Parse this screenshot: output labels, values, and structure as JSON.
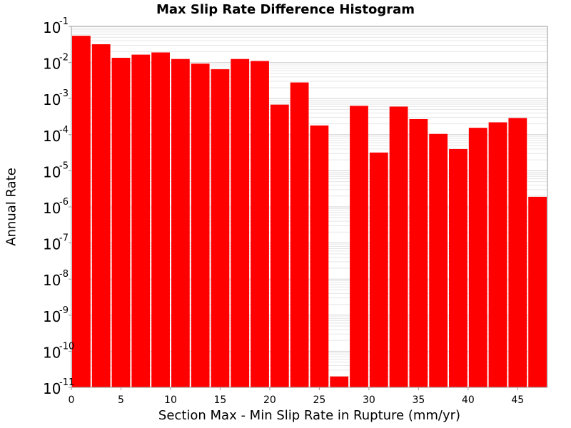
{
  "chart_data": {
    "type": "bar",
    "title": "Max Slip Rate Difference Histogram",
    "xlabel": "Section Max - Min Slip Rate in Rupture (mm/yr)",
    "ylabel": "Annual Rate",
    "y_scale": "log",
    "ylim": [
      1e-11,
      0.1
    ],
    "xlim": [
      0,
      48
    ],
    "bin_width": 2,
    "x_ticks": [
      0,
      5,
      10,
      15,
      20,
      25,
      30,
      35,
      40,
      45
    ],
    "y_ticks": [
      {
        "base": "10",
        "exp": "-11",
        "value": 1e-11
      },
      {
        "base": "10",
        "exp": "-10",
        "value": 1e-10
      },
      {
        "base": "10",
        "exp": "-9",
        "value": 1e-09
      },
      {
        "base": "10",
        "exp": "-8",
        "value": 1e-08
      },
      {
        "base": "10",
        "exp": "-7",
        "value": 1e-07
      },
      {
        "base": "10",
        "exp": "-6",
        "value": 1e-06
      },
      {
        "base": "10",
        "exp": "-5",
        "value": 1e-05
      },
      {
        "base": "10",
        "exp": "-4",
        "value": 0.0001
      },
      {
        "base": "10",
        "exp": "-3",
        "value": 0.001
      },
      {
        "base": "10",
        "exp": "-2",
        "value": 0.01
      },
      {
        "base": "10",
        "exp": "-1",
        "value": 0.1
      }
    ],
    "grid": true,
    "bar_color": "#ff0000",
    "x": [
      1,
      3,
      5,
      7,
      9,
      11,
      13,
      15,
      17,
      19,
      21,
      23,
      25,
      27,
      29,
      31,
      33,
      35,
      37,
      39,
      41,
      43,
      45,
      47
    ],
    "values": [
      0.055,
      0.032,
      0.0135,
      0.0165,
      0.019,
      0.0125,
      0.0093,
      0.0065,
      0.0125,
      0.011,
      0.00068,
      0.0028,
      0.00018,
      2e-11,
      0.00063,
      3.2e-05,
      0.0006,
      0.00027,
      0.000105,
      4e-05,
      0.000155,
      0.00022,
      0.00029,
      1.9e-06
    ]
  }
}
